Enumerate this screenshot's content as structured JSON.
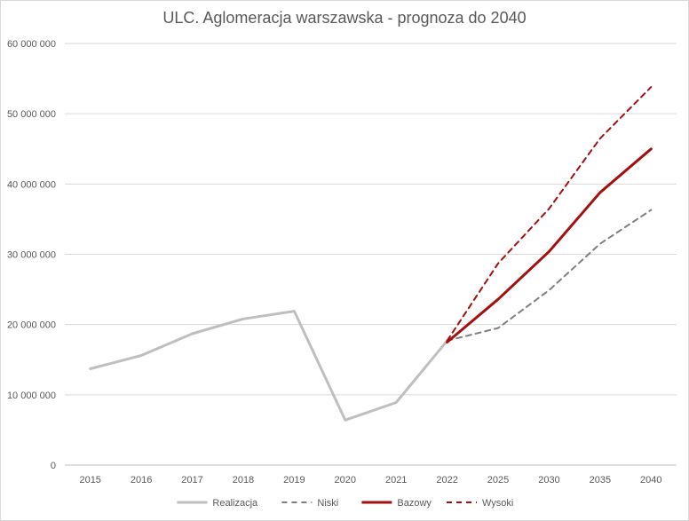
{
  "chart_data": {
    "type": "line",
    "title": "ULC. Aglomeracja warszawska - prognoza do 2040",
    "xlabel": "",
    "ylabel": "",
    "categories": [
      "2015",
      "2016",
      "2017",
      "2018",
      "2019",
      "2020",
      "2021",
      "2022",
      "2025",
      "2030",
      "2035",
      "2040"
    ],
    "ylim": [
      0,
      60000000
    ],
    "yticks": [
      0,
      10000000,
      20000000,
      30000000,
      40000000,
      50000000,
      60000000
    ],
    "ytick_labels": [
      "0",
      "10 000 000",
      "20 000 000",
      "30 000 000",
      "40 000 000",
      "50 000 000",
      "60 000 000"
    ],
    "grid": true,
    "legend_position": "bottom",
    "series": [
      {
        "name": "Realizacja",
        "color": "#bfbfbf",
        "style": "solid",
        "values": [
          13700000,
          15600000,
          18700000,
          20800000,
          21900000,
          6400000,
          8900000,
          17700000,
          null,
          null,
          null,
          null
        ]
      },
      {
        "name": "Niski",
        "color": "#7f7f7f",
        "style": "dashed",
        "values": [
          null,
          null,
          null,
          null,
          null,
          null,
          null,
          17700000,
          19500000,
          24900000,
          31500000,
          36300000
        ]
      },
      {
        "name": "Bazowy",
        "color": "#a50f0f",
        "style": "solid",
        "values": [
          null,
          null,
          null,
          null,
          null,
          null,
          null,
          17500000,
          23600000,
          30400000,
          38800000,
          45000000
        ]
      },
      {
        "name": "Wysoki",
        "color": "#a50f0f",
        "style": "dashed",
        "values": [
          null,
          null,
          null,
          null,
          null,
          null,
          null,
          17700000,
          28700000,
          36500000,
          46500000,
          53800000
        ]
      }
    ]
  }
}
